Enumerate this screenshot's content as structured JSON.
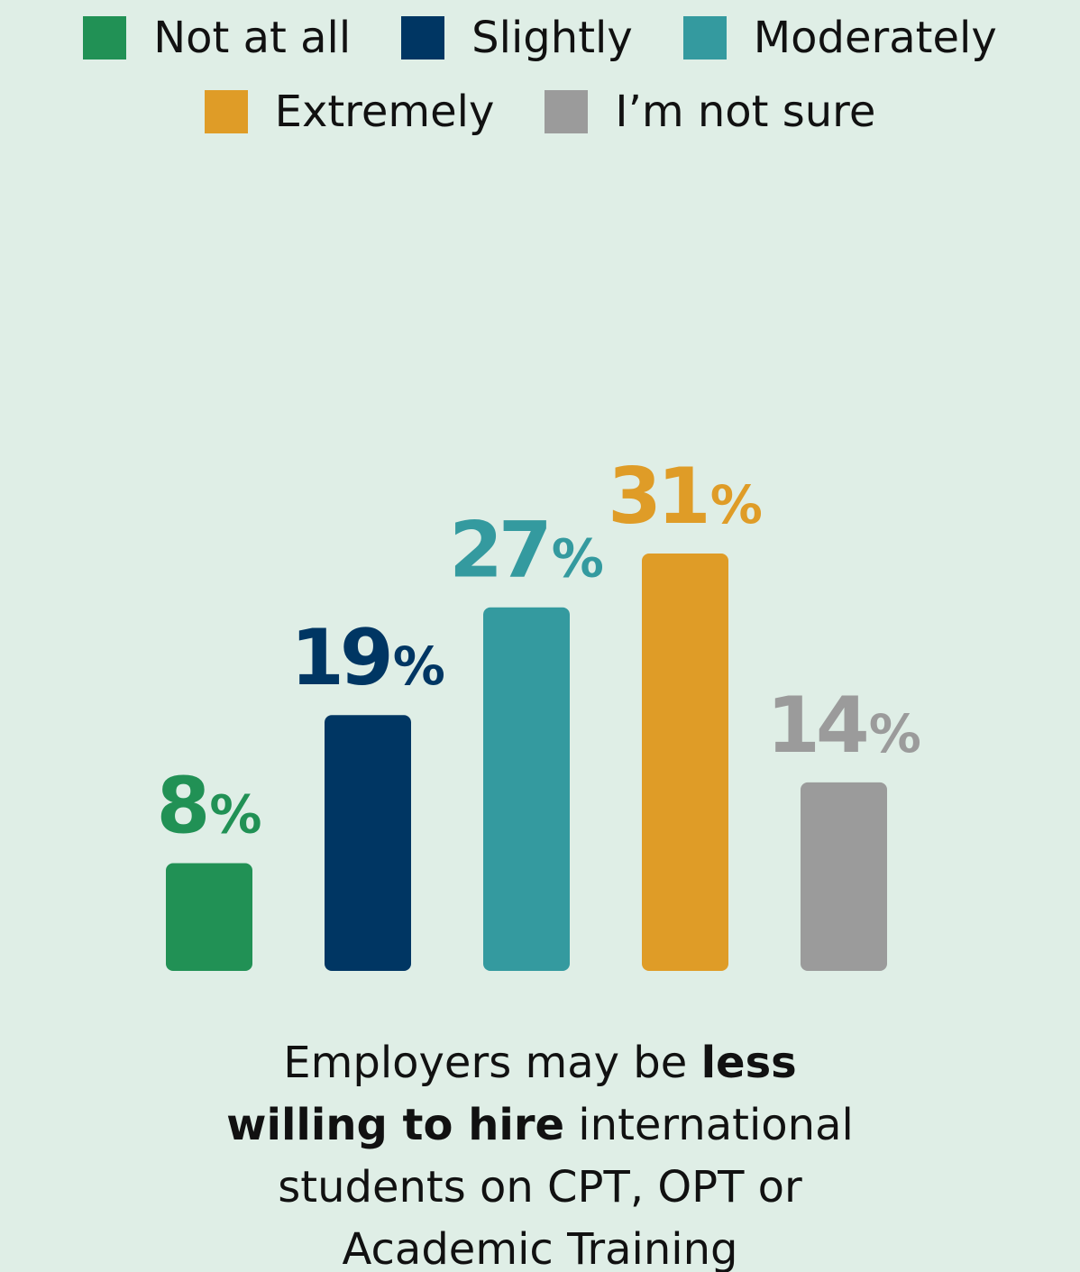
{
  "chart_data": {
    "type": "bar",
    "categories": [
      "Not at all",
      "Slightly",
      "Moderately",
      "Extremely",
      "I’m not sure"
    ],
    "values": [
      8,
      19,
      27,
      31,
      14
    ],
    "value_labels": [
      "8",
      "19",
      "27",
      "31",
      "14"
    ],
    "unit": "%",
    "colors": [
      "#219155",
      "#003663",
      "#349a9f",
      "#df9c27",
      "#9b9b9b"
    ],
    "legend": {
      "position": "top-center"
    },
    "grid": false,
    "ylim": [
      0,
      31
    ]
  },
  "caption": {
    "part1": "Employers may be ",
    "bold1": "less",
    "bold2": "willing to hire",
    "part2": " international",
    "line3": "students on CPT, OPT or",
    "line4": "Academic Training"
  }
}
